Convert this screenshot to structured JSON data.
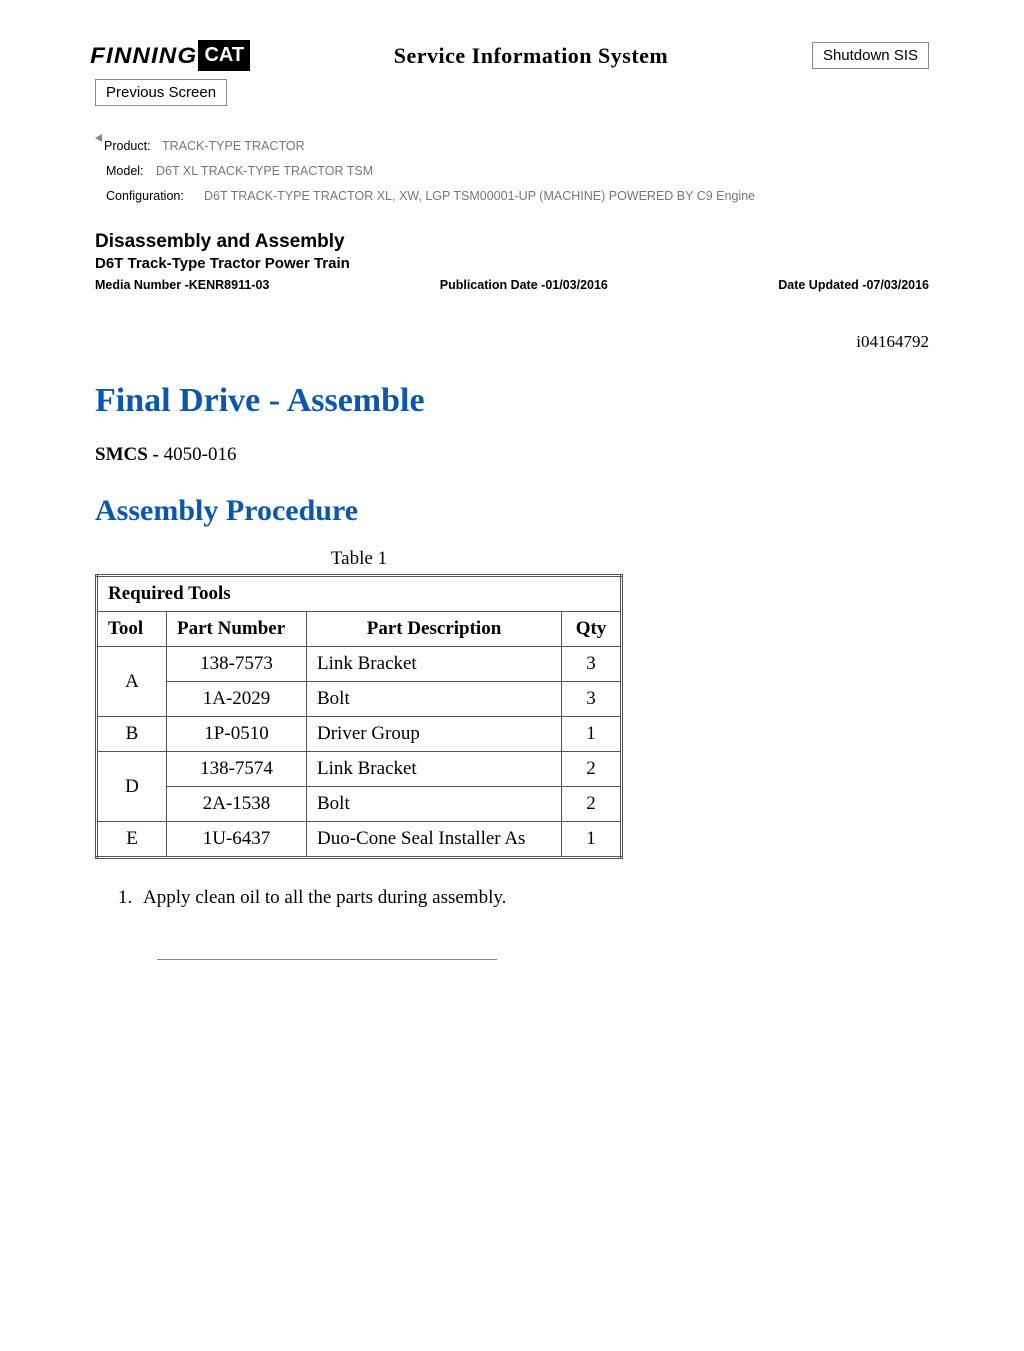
{
  "header": {
    "logo_left": "FINNING",
    "logo_right": "CAT",
    "system_title": "Service Information System",
    "shutdown_label": "Shutdown SIS",
    "prev_label": "Previous Screen"
  },
  "product_meta": {
    "product_label": "Product:",
    "product_value": "TRACK-TYPE TRACTOR",
    "model_label": "Model:",
    "model_value": "D6T XL TRACK-TYPE TRACTOR TSM",
    "config_label": "Configuration:",
    "config_value": "D6T TRACK-TYPE TRACTOR XL, XW, LGP TSM00001-UP (MACHINE) POWERED BY C9 Engine"
  },
  "section": {
    "title": "Disassembly and Assembly",
    "subtitle": "D6T Track-Type Tractor Power Train",
    "media_label": "Media Number -",
    "media_value": "KENR8911-03",
    "pub_label": "Publication Date -",
    "pub_value": "01/03/2016",
    "updated_label": "Date Updated -",
    "updated_value": "07/03/2016"
  },
  "doc_id": "i04164792",
  "procedure_title": "Final Drive - Assemble",
  "smcs_label": "SMCS -",
  "smcs_value": "4050-016",
  "assembly_heading": "Assembly Procedure",
  "table": {
    "caption": "Table 1",
    "header_span": "Required Tools",
    "columns": {
      "tool": "Tool",
      "pn": "Part Number",
      "desc": "Part Description",
      "qty": "Qty"
    },
    "rows": [
      {
        "tool": "A",
        "pn": "138-7573",
        "desc": "Link Bracket",
        "qty": "3",
        "rowspan": 2
      },
      {
        "tool": "",
        "pn": "1A-2029",
        "desc": "Bolt",
        "qty": "3"
      },
      {
        "tool": "B",
        "pn": "1P-0510",
        "desc": "Driver Group",
        "qty": "1",
        "rowspan": 1
      },
      {
        "tool": "D",
        "pn": "138-7574",
        "desc": "Link Bracket",
        "qty": "2",
        "rowspan": 2
      },
      {
        "tool": "",
        "pn": "2A-1538",
        "desc": "Bolt",
        "qty": "2"
      },
      {
        "tool": "E",
        "pn": "1U-6437",
        "desc": "Duo-Cone Seal Installer As",
        "qty": "1",
        "rowspan": 1
      }
    ]
  },
  "steps": [
    "Apply clean oil to all the parts during assembly."
  ]
}
